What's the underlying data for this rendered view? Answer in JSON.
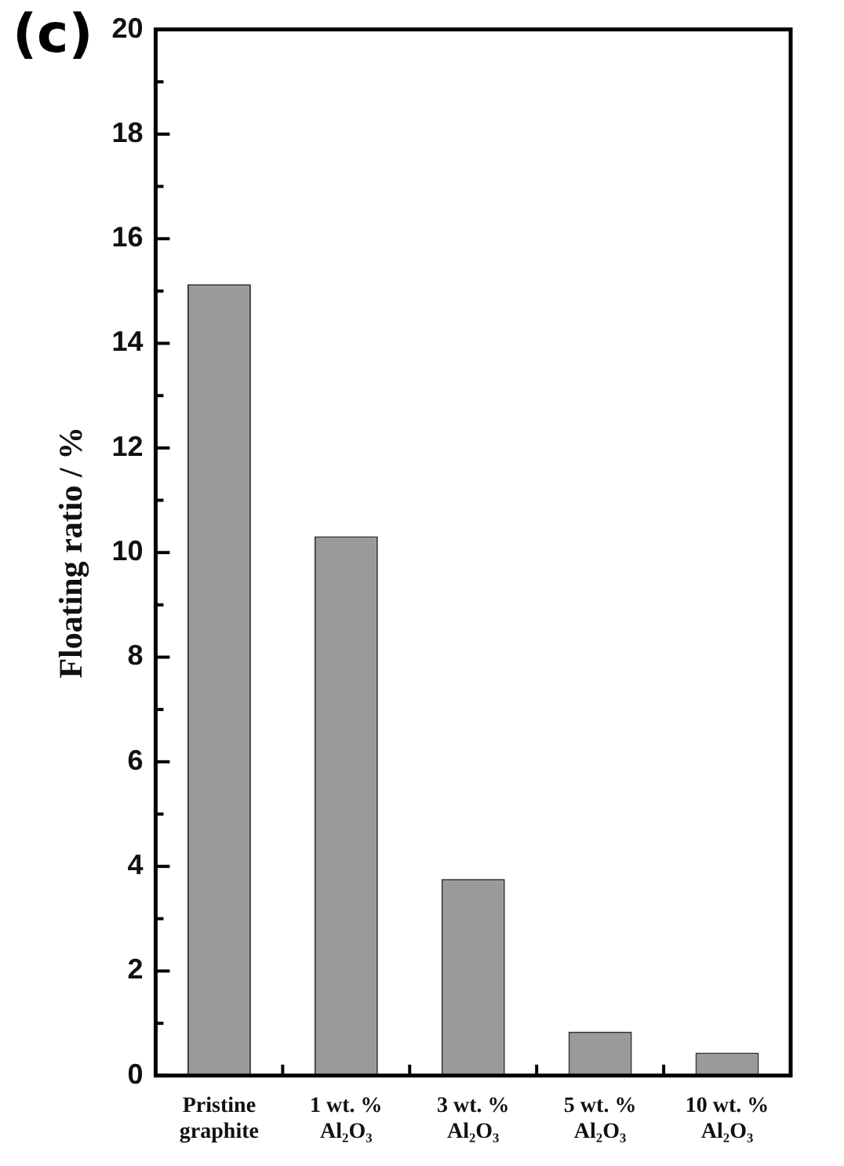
{
  "chart_data": {
    "type": "bar",
    "title": "(c)",
    "ylabel": "Floating ratio / %",
    "categories": [
      "Pristine graphite",
      "1 wt. % Al₂O₃",
      "3 wt. % Al₂O₃",
      "5 wt. % Al₂O₃",
      "10 wt. % Al₂O₃"
    ],
    "values": [
      15.13,
      10.31,
      3.76,
      0.84,
      0.44
    ],
    "color": "#9a9a9a",
    "ylim": [
      0,
      20
    ],
    "yticks": [
      0,
      {
        "value": 1,
        "label": null
      },
      2,
      {
        "value": 3,
        "label": null
      },
      4,
      {
        "value": 5,
        "label": null
      },
      6,
      {
        "value": 7,
        "label": null
      },
      8,
      {
        "value": 9,
        "label": null
      },
      10,
      {
        "value": 11,
        "label": null
      },
      12,
      {
        "value": 13,
        "label": null
      },
      14,
      {
        "value": 15,
        "label": null
      },
      16,
      {
        "value": 17,
        "label": null
      },
      18,
      {
        "value": 19,
        "label": null
      },
      20
    ],
    "grid": false,
    "legend": false
  }
}
